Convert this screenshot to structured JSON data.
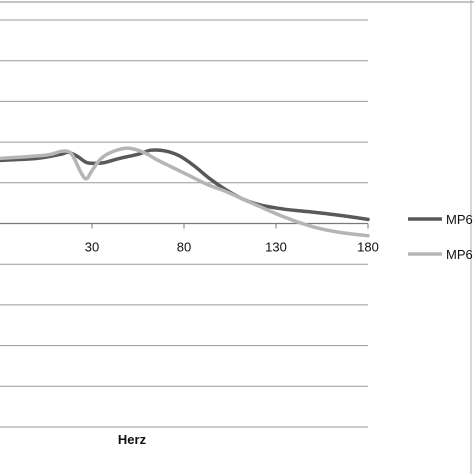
{
  "chart_data": {
    "type": "line",
    "title": "",
    "xlabel": "Herz",
    "ylabel": "",
    "xlim": [
      -20,
      180
    ],
    "x_ticks": [
      "30",
      "80",
      "130",
      "180"
    ],
    "y_gridlines": 11,
    "grid": true,
    "legend_position": "right",
    "series": [
      {
        "name": "MP6",
        "color": "#595959",
        "points": [
          [
            -20,
            6.55
          ],
          [
            0,
            6.6
          ],
          [
            13,
            6.7
          ],
          [
            17,
            6.75
          ],
          [
            22,
            6.65
          ],
          [
            27,
            6.5
          ],
          [
            32,
            6.48
          ],
          [
            37,
            6.5
          ],
          [
            45,
            6.6
          ],
          [
            55,
            6.7
          ],
          [
            62,
            6.8
          ],
          [
            70,
            6.78
          ],
          [
            78,
            6.65
          ],
          [
            86,
            6.4
          ],
          [
            94,
            6.1
          ],
          [
            102,
            5.85
          ],
          [
            112,
            5.6
          ],
          [
            122,
            5.45
          ],
          [
            135,
            5.35
          ],
          [
            150,
            5.28
          ],
          [
            165,
            5.2
          ],
          [
            180,
            5.1
          ]
        ]
      },
      {
        "name": "MP6",
        "color": "#b5b5b5",
        "points": [
          [
            -20,
            6.6
          ],
          [
            5,
            6.68
          ],
          [
            14,
            6.78
          ],
          [
            19,
            6.7
          ],
          [
            24,
            6.25
          ],
          [
            27,
            6.1
          ],
          [
            30,
            6.3
          ],
          [
            35,
            6.6
          ],
          [
            42,
            6.78
          ],
          [
            50,
            6.85
          ],
          [
            58,
            6.75
          ],
          [
            66,
            6.55
          ],
          [
            75,
            6.35
          ],
          [
            84,
            6.15
          ],
          [
            93,
            5.95
          ],
          [
            102,
            5.8
          ],
          [
            112,
            5.6
          ],
          [
            122,
            5.4
          ],
          [
            135,
            5.15
          ],
          [
            150,
            4.92
          ],
          [
            165,
            4.78
          ],
          [
            180,
            4.7
          ]
        ]
      }
    ]
  }
}
